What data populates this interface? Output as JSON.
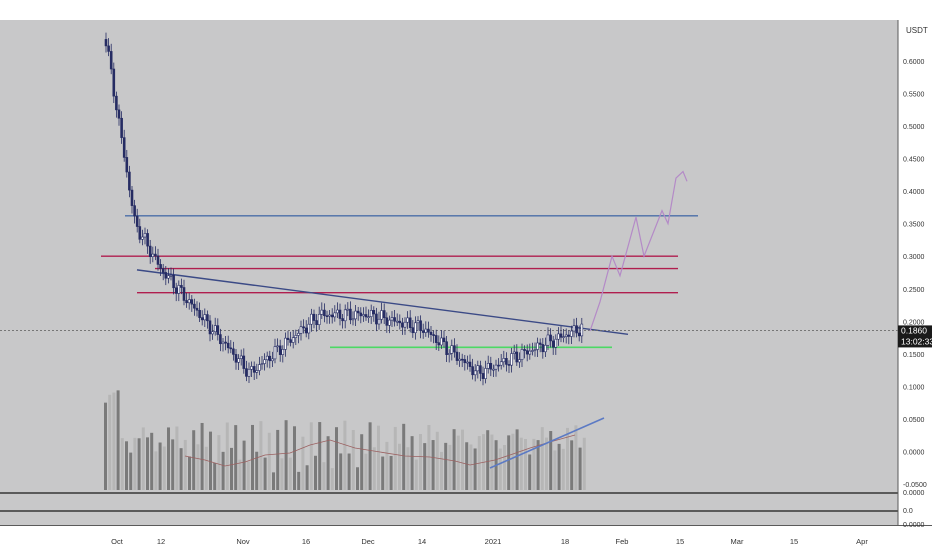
{
  "chart_data": {
    "type": "candlestick",
    "title": "",
    "quote_currency": "USDT",
    "ylim": [
      -0.05,
      0.65
    ],
    "y_ticks": [
      "0.6000",
      "0.5500",
      "0.5000",
      "0.4500",
      "0.4000",
      "0.3500",
      "0.3000",
      "0.2500",
      "0.2000",
      "0.1500",
      "0.1000",
      "0.0500",
      "0.0000",
      "-0.0500"
    ],
    "x_ticks": [
      "Oct",
      "12",
      "Nov",
      "16",
      "Dec",
      "14",
      "2021",
      "18",
      "Feb",
      "15",
      "Mar",
      "15",
      "Apr"
    ],
    "last_price": "0.1860",
    "countdown": "13:02:33",
    "lower_panel_ticks": [
      "0.0000",
      "0.0",
      "0.0000"
    ],
    "price_overview": [
      {
        "date": "Oct",
        "price": 0.65
      },
      {
        "date": "Oct",
        "price": 0.35
      },
      {
        "date": "12",
        "price": 0.28
      },
      {
        "date": "Nov",
        "price": 0.12
      },
      {
        "date": "16",
        "price": 0.21
      },
      {
        "date": "Dec",
        "price": 0.21
      },
      {
        "date": "14",
        "price": 0.19
      },
      {
        "date": "2021",
        "price": 0.12
      },
      {
        "date": "18",
        "price": 0.19
      }
    ],
    "horizontal_levels": [
      {
        "price": 0.362,
        "color": "#4a6ea8"
      },
      {
        "price": 0.3,
        "color": "#b01e4e"
      },
      {
        "price": 0.281,
        "color": "#b01e4e"
      },
      {
        "price": 0.244,
        "color": "#b01e4e"
      },
      {
        "price": 0.16,
        "color": "#4cd964"
      }
    ],
    "trendline": {
      "from": {
        "date": "12",
        "price": 0.279
      },
      "to": {
        "date": "Feb",
        "price": 0.18
      },
      "color": "#3b4a86"
    },
    "volume_trendline_color": "#5c7ac4",
    "projection_color": "#b48ac7",
    "candle_colors": {
      "up": "#ffffff",
      "down": "#262c63",
      "wick": "#262c63"
    },
    "volume_colors": {
      "light": "#b6b6b6",
      "dark": "#7a7a7a"
    },
    "grid": false
  }
}
